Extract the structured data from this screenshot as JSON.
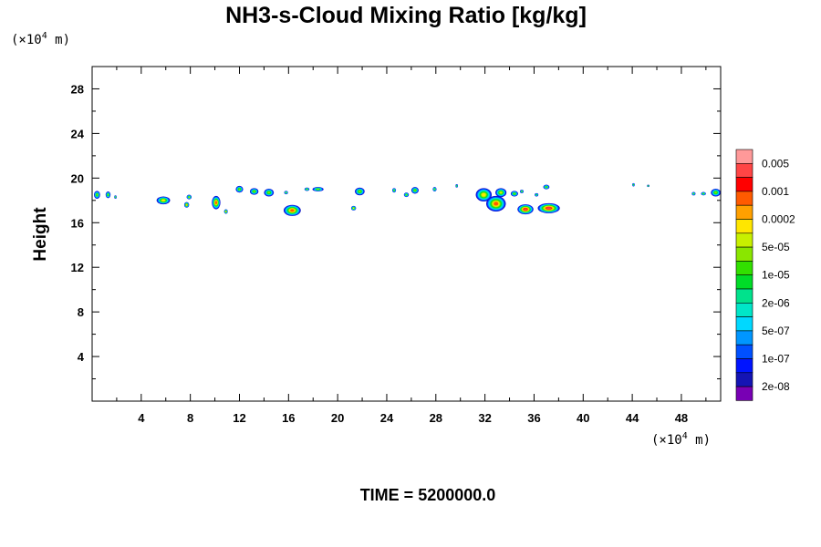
{
  "chart_data": {
    "type": "heatmap",
    "title": "NH3-s-Cloud Mixing Ratio [kg/kg]",
    "xlabel": "",
    "ylabel": "Height",
    "x_unit": {
      "prefix": "(×10",
      "exp": "4",
      "suffix": " m)"
    },
    "y_unit": {
      "prefix": "(×10",
      "exp": "4",
      "suffix": " m)"
    },
    "xlim": [
      0,
      51.2
    ],
    "ylim": [
      0,
      30
    ],
    "x_ticks": [
      4,
      8,
      12,
      16,
      20,
      24,
      28,
      32,
      36,
      40,
      44,
      48
    ],
    "y_ticks": [
      4,
      8,
      12,
      16,
      20,
      24,
      28
    ],
    "x_minor_step": 2,
    "y_minor_step": 2,
    "colorbar": {
      "levels": [
        "0.005",
        "0.001",
        "0.0002",
        "5e-05",
        "1e-05",
        "2e-06",
        "5e-07",
        "1e-07",
        "2e-08"
      ],
      "colors": [
        "#ff9999",
        "#ff4545",
        "#ff0000",
        "#ff5a00",
        "#ffa000",
        "#ffe600",
        "#c8f000",
        "#8ae600",
        "#32e000",
        "#00dc28",
        "#00e28c",
        "#00e6c8",
        "#00d8ff",
        "#0096ff",
        "#0050ff",
        "#0014ff",
        "#1414b4",
        "#7800b4"
      ]
    },
    "cloud_blobs": [
      {
        "x": 0.4,
        "y": 18.5,
        "w": 0.5,
        "h": 0.7,
        "peak": 7
      },
      {
        "x": 1.3,
        "y": 18.5,
        "w": 0.4,
        "h": 0.6,
        "peak": 7
      },
      {
        "x": 1.9,
        "y": 18.3,
        "w": 0.2,
        "h": 0.3,
        "peak": 7
      },
      {
        "x": 5.8,
        "y": 18.0,
        "w": 1.1,
        "h": 0.7,
        "peak": 5
      },
      {
        "x": 7.9,
        "y": 18.3,
        "w": 0.4,
        "h": 0.4,
        "peak": 6
      },
      {
        "x": 7.7,
        "y": 17.6,
        "w": 0.4,
        "h": 0.5,
        "peak": 4
      },
      {
        "x": 10.1,
        "y": 17.8,
        "w": 0.7,
        "h": 1.2,
        "peak": 3
      },
      {
        "x": 10.9,
        "y": 17.0,
        "w": 0.3,
        "h": 0.4,
        "peak": 4
      },
      {
        "x": 12.0,
        "y": 19.0,
        "w": 0.6,
        "h": 0.6,
        "peak": 7
      },
      {
        "x": 13.2,
        "y": 18.8,
        "w": 0.7,
        "h": 0.6,
        "peak": 7
      },
      {
        "x": 14.4,
        "y": 18.7,
        "w": 0.8,
        "h": 0.7,
        "peak": 7
      },
      {
        "x": 15.8,
        "y": 18.7,
        "w": 0.3,
        "h": 0.3,
        "peak": 7
      },
      {
        "x": 16.3,
        "y": 17.1,
        "w": 1.4,
        "h": 1.0,
        "peak": 3
      },
      {
        "x": 17.5,
        "y": 19.0,
        "w": 0.4,
        "h": 0.3,
        "peak": 7
      },
      {
        "x": 18.4,
        "y": 19.0,
        "w": 0.9,
        "h": 0.4,
        "peak": 7
      },
      {
        "x": 21.3,
        "y": 17.3,
        "w": 0.4,
        "h": 0.4,
        "peak": 5
      },
      {
        "x": 21.8,
        "y": 18.8,
        "w": 0.8,
        "h": 0.7,
        "peak": 7
      },
      {
        "x": 24.6,
        "y": 18.9,
        "w": 0.3,
        "h": 0.4,
        "peak": 7
      },
      {
        "x": 25.6,
        "y": 18.5,
        "w": 0.4,
        "h": 0.4,
        "peak": 7
      },
      {
        "x": 26.3,
        "y": 18.9,
        "w": 0.6,
        "h": 0.6,
        "peak": 7
      },
      {
        "x": 27.9,
        "y": 19.0,
        "w": 0.3,
        "h": 0.4,
        "peak": 7
      },
      {
        "x": 29.7,
        "y": 19.3,
        "w": 0.2,
        "h": 0.3,
        "peak": 8
      },
      {
        "x": 31.9,
        "y": 18.5,
        "w": 1.3,
        "h": 1.2,
        "peak": 5
      },
      {
        "x": 32.9,
        "y": 17.7,
        "w": 1.6,
        "h": 1.4,
        "peak": 3
      },
      {
        "x": 33.3,
        "y": 18.7,
        "w": 0.9,
        "h": 0.8,
        "peak": 6
      },
      {
        "x": 34.4,
        "y": 18.6,
        "w": 0.6,
        "h": 0.5,
        "peak": 7
      },
      {
        "x": 35.0,
        "y": 18.8,
        "w": 0.3,
        "h": 0.3,
        "peak": 7
      },
      {
        "x": 35.3,
        "y": 17.2,
        "w": 1.3,
        "h": 0.9,
        "peak": 1
      },
      {
        "x": 37.2,
        "y": 17.3,
        "w": 1.8,
        "h": 0.9,
        "peak": 1
      },
      {
        "x": 36.2,
        "y": 18.5,
        "w": 0.3,
        "h": 0.3,
        "peak": 8
      },
      {
        "x": 37.0,
        "y": 19.2,
        "w": 0.5,
        "h": 0.4,
        "peak": 7
      },
      {
        "x": 44.1,
        "y": 19.4,
        "w": 0.2,
        "h": 0.3,
        "peak": 8
      },
      {
        "x": 45.3,
        "y": 19.3,
        "w": 0.2,
        "h": 0.2,
        "peak": 8
      },
      {
        "x": 49.0,
        "y": 18.6,
        "w": 0.3,
        "h": 0.3,
        "peak": 7
      },
      {
        "x": 49.8,
        "y": 18.6,
        "w": 0.4,
        "h": 0.3,
        "peak": 7
      },
      {
        "x": 50.8,
        "y": 18.7,
        "w": 0.8,
        "h": 0.7,
        "peak": 7
      }
    ],
    "time_label": "TIME = 5200000.0"
  }
}
